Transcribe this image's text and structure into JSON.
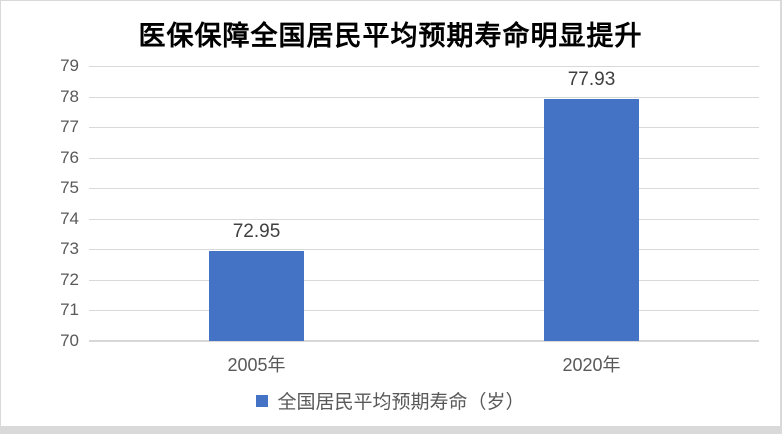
{
  "chart_data": {
    "type": "bar",
    "title": "医保保障全国居民平均预期寿命明显提升",
    "categories": [
      "2005年",
      "2020年"
    ],
    "series": [
      {
        "name": "全国居民平均预期寿命（岁）",
        "values": [
          72.95,
          77.93
        ]
      }
    ],
    "value_labels": [
      "72.95",
      "77.93"
    ],
    "xlabel": "",
    "ylabel": "",
    "ylim": [
      70,
      79
    ],
    "yticks": [
      70,
      71,
      72,
      73,
      74,
      75,
      76,
      77,
      78,
      79
    ],
    "grid": true,
    "legend_position": "bottom",
    "colors": {
      "bar": "#4472C4",
      "gridline": "#d9d9d9",
      "axis_line": "#d6d6d6",
      "tick_label": "#595959",
      "value_label": "#404040",
      "title": "#000000",
      "frame_border": "#d9d9d9",
      "background": "#ffffff"
    }
  }
}
